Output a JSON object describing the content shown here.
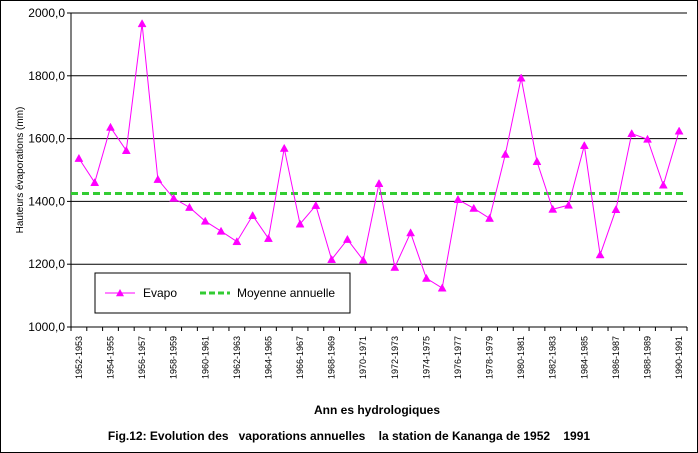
{
  "chart_data": {
    "type": "line",
    "ylabel": "Hauteurs évaporations (mm)",
    "xlabel": "Ann  es hydrologiques",
    "caption": "Fig.12: Evolution des   vaporations annuelles    la station de Kananga de 1952    1991",
    "ylim": [
      1000,
      2000
    ],
    "yticks": [
      "1000,0",
      "1200,0",
      "1400,0",
      "1600,0",
      "1800,0",
      "2000,0"
    ],
    "ytick_values": [
      1000,
      1200,
      1400,
      1600,
      1800,
      2000
    ],
    "categories": [
      "1952-1953",
      "1953-1954",
      "1954-1955",
      "1955-1956",
      "1956-1957",
      "1957-1958",
      "1958-1959",
      "1959-1960",
      "1960-1961",
      "1961-1962",
      "1962-1963",
      "1963-1964",
      "1964-1965",
      "1965-1966",
      "1966-1967",
      "1967-1968",
      "1968-1969",
      "1969-1970",
      "1970-1971",
      "1971-1972",
      "1972-1973",
      "1973-1974",
      "1974-1975",
      "1975-1976",
      "1976-1977",
      "1977-1978",
      "1978-1979",
      "1979-1980",
      "1980-1981",
      "1981-1982",
      "1982-1983",
      "1983-1984",
      "1984-1985",
      "1985-1986",
      "1986-1987",
      "1987-1988",
      "1988-1989",
      "1989-1990",
      "1990-1991"
    ],
    "xtick_labels": [
      "1952-1953",
      "1954-1955",
      "1956-1957",
      "1958-1959",
      "1960-1961",
      "1962-1963",
      "1964-1965",
      "1966-1967",
      "1968-1969",
      "1970-1971",
      "1972-1973",
      "1974-1975",
      "1976-1977",
      "1978-1979",
      "1980-1981",
      "1982-1983",
      "1984-1985",
      "1986-1987",
      "1988-1989",
      "1990-1991"
    ],
    "series": [
      {
        "name": "Evapo",
        "color": "#ff00ff",
        "marker": "triangle",
        "values": [
          1537,
          1460,
          1636,
          1562,
          1966,
          1470,
          1410,
          1381,
          1337,
          1305,
          1272,
          1355,
          1282,
          1569,
          1328,
          1387,
          1215,
          1279,
          1213,
          1457,
          1190,
          1300,
          1155,
          1124,
          1406,
          1378,
          1346,
          1550,
          1793,
          1527,
          1375,
          1388,
          1578,
          1230,
          1374,
          1616,
          1598,
          1452,
          1624
        ]
      },
      {
        "name": "Moyenne annuelle",
        "color": "#33cc33",
        "style": "dashed",
        "values": [
          1425,
          1425,
          1425,
          1425,
          1425,
          1425,
          1425,
          1425,
          1425,
          1425,
          1425,
          1425,
          1425,
          1425,
          1425,
          1425,
          1425,
          1425,
          1425,
          1425,
          1425,
          1425,
          1425,
          1425,
          1425,
          1425,
          1425,
          1425,
          1425,
          1425,
          1425,
          1425,
          1425,
          1425,
          1425,
          1425,
          1425,
          1425,
          1425
        ]
      }
    ],
    "legend_position": "bottom-left",
    "grid": true
  }
}
